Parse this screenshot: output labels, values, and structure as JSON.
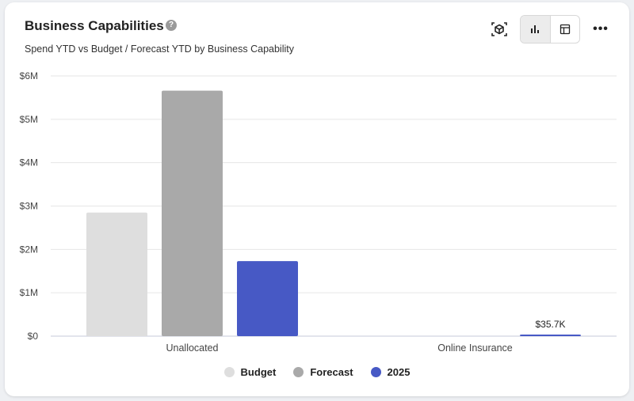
{
  "header": {
    "title": "Business Capabilities",
    "help_icon": "question-circle-icon",
    "subtitle": "Spend YTD vs Budget / Forecast YTD by Business Capability"
  },
  "toolbar": {
    "cube_icon": "cube-scan-icon",
    "bar_chart_icon": "bar-chart-icon",
    "table_icon": "table-icon",
    "more_icon": "more-horizontal-icon",
    "more_glyph": "•••"
  },
  "chart_data": {
    "type": "bar",
    "categories": [
      "Unallocated",
      "Online Insurance"
    ],
    "series": [
      {
        "name": "Budget",
        "color": "#dedede",
        "values": [
          2850000,
          0
        ]
      },
      {
        "name": "Forecast",
        "color": "#a9a9a9",
        "values": [
          5660000,
          0
        ]
      },
      {
        "name": "2025",
        "color": "#4759c5",
        "values": [
          1730000,
          35700
        ]
      }
    ],
    "data_labels": [
      {
        "series": "2025",
        "category": "Online Insurance",
        "text": "$35.7K"
      }
    ],
    "ylim": [
      0,
      6000000
    ],
    "yticks": [
      {
        "value": 0,
        "label": "$0"
      },
      {
        "value": 1000000,
        "label": "$1M"
      },
      {
        "value": 2000000,
        "label": "$2M"
      },
      {
        "value": 3000000,
        "label": "$3M"
      },
      {
        "value": 4000000,
        "label": "$4M"
      },
      {
        "value": 5000000,
        "label": "$5M"
      },
      {
        "value": 6000000,
        "label": "$6M"
      }
    ],
    "grid": true,
    "legend": "bottom-center",
    "xlabel": "",
    "ylabel": ""
  }
}
